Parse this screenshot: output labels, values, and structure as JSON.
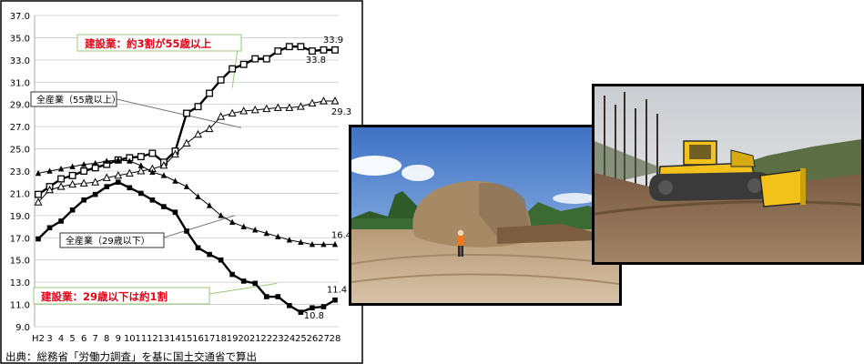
{
  "chart_data": {
    "type": "line",
    "title": "",
    "xlabel": "",
    "ylabel": "",
    "ylim": [
      9.0,
      37.0
    ],
    "yticks": [
      "9.0",
      "11.0",
      "13.0",
      "15.0",
      "17.0",
      "19.0",
      "21.0",
      "23.0",
      "25.0",
      "27.0",
      "29.0",
      "31.0",
      "33.0",
      "35.0",
      "37.0"
    ],
    "categories": [
      "H2",
      "3",
      "4",
      "5",
      "6",
      "7",
      "8",
      "9",
      "10",
      "11",
      "12",
      "13",
      "14",
      "15",
      "16",
      "17",
      "18",
      "19",
      "20",
      "21",
      "22",
      "23",
      "24",
      "25",
      "26",
      "27",
      "28"
    ],
    "grid": true,
    "series": [
      {
        "key": "c55",
        "color": "#000000",
        "marker": "square",
        "width": 2.4,
        "values": [
          20.9,
          21.6,
          22.3,
          22.6,
          23.0,
          23.3,
          23.6,
          24.0,
          24.2,
          24.3,
          24.6,
          23.8,
          24.8,
          28.2,
          28.8,
          30.0,
          31.2,
          32.2,
          32.6,
          33.1,
          33.1,
          33.8,
          34.2,
          34.2,
          33.8,
          33.9,
          33.9
        ]
      },
      {
        "key": "a55",
        "color": "#000000",
        "marker": "triangle-open",
        "width": 1,
        "values": [
          20.2,
          21.3,
          21.6,
          21.8,
          21.9,
          22.0,
          22.4,
          22.6,
          22.8,
          23.0,
          23.2,
          23.5,
          24.5,
          25.5,
          26.3,
          26.8,
          27.9,
          28.2,
          28.4,
          28.5,
          28.6,
          28.7,
          28.7,
          28.8,
          29.1,
          29.3,
          29.3
        ]
      },
      {
        "key": "a29",
        "color": "#000000",
        "marker": "triangle-filled",
        "width": 1,
        "values": [
          22.8,
          23.0,
          23.2,
          23.4,
          23.6,
          23.7,
          23.9,
          24.0,
          23.9,
          23.5,
          22.9,
          22.6,
          22.1,
          21.6,
          20.7,
          19.9,
          19.0,
          18.4,
          18.0,
          17.7,
          17.4,
          17.1,
          16.8,
          16.6,
          16.4,
          16.4,
          16.4
        ]
      },
      {
        "key": "c29",
        "color": "#000000",
        "marker": "dot",
        "width": 2.4,
        "values": [
          16.9,
          17.9,
          18.5,
          19.5,
          20.4,
          20.9,
          21.6,
          22.0,
          21.5,
          21.0,
          20.4,
          19.8,
          19.3,
          17.6,
          16.1,
          15.5,
          15.0,
          13.7,
          13.1,
          12.9,
          11.7,
          11.7,
          10.9,
          10.3,
          10.7,
          10.8,
          11.4
        ]
      }
    ],
    "annotations": {
      "c55": {
        "text": "建設業：約3割が55歳以上",
        "color": "#e60012",
        "border": "#9ac87a"
      },
      "a55": {
        "text": "全産業（55歳以上）"
      },
      "a29": {
        "text": "全産業（29歳以下）"
      },
      "c29": {
        "text": "建設業：29歳以下は約1割",
        "color": "#e60012",
        "border": "#9ac87a"
      }
    },
    "end_labels": [
      "33.9",
      "33.8",
      "29.3",
      "16.4",
      "11.4",
      "10.8"
    ],
    "source": "出典：総務省「労働力調査」を基に国土交通省で算出"
  },
  "photos": {
    "boulder": {
      "sky": "#5e8fd2",
      "ground": "#c0a585",
      "rock": "#b39572",
      "worker_vest": "#f07a1a"
    },
    "dozer": {
      "sky": "#dcdfe2",
      "hill": "#6a7a4a",
      "ground": "#8a6a4e",
      "machine": "#f2c21a"
    }
  }
}
